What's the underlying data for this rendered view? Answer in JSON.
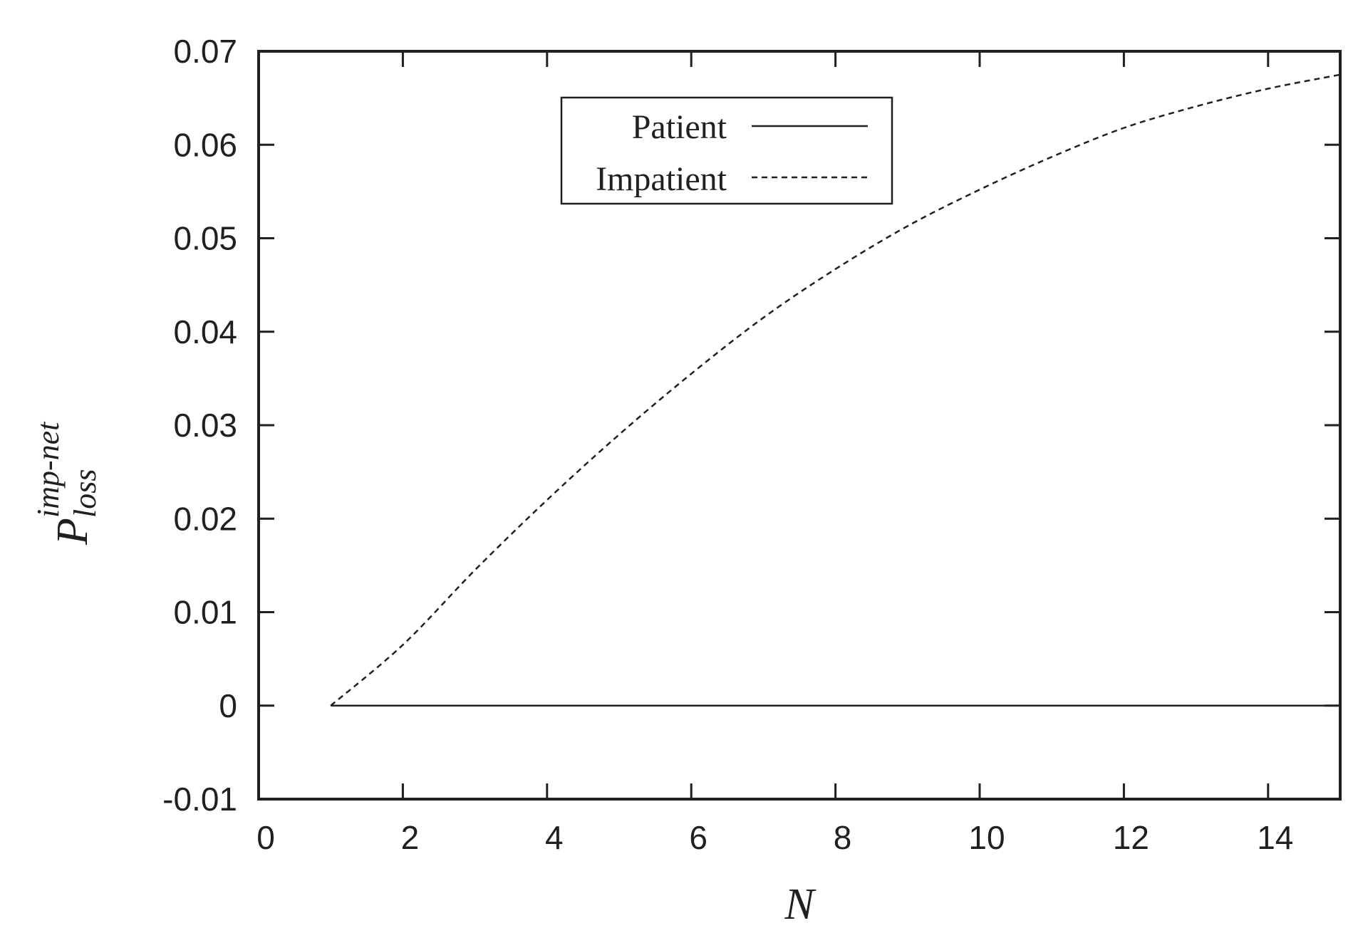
{
  "chart_data": {
    "type": "line",
    "xlabel": "N",
    "ylabel": {
      "main": "P",
      "superscript": "imp-net",
      "subscript": "loss"
    },
    "xlim": [
      0,
      15
    ],
    "ylim": [
      -0.01,
      0.07
    ],
    "x_ticks": [
      "0",
      "2",
      "4",
      "6",
      "8",
      "10",
      "12",
      "14"
    ],
    "x_tick_values": [
      0,
      2,
      4,
      6,
      8,
      10,
      12,
      14
    ],
    "y_ticks": [
      "-0.01",
      "0",
      "0.01",
      "0.02",
      "0.03",
      "0.04",
      "0.05",
      "0.06",
      "0.07"
    ],
    "y_tick_values": [
      -0.01,
      0,
      0.01,
      0.02,
      0.03,
      0.04,
      0.05,
      0.06,
      0.07
    ],
    "grid": false,
    "legend_position": "top-center",
    "series": [
      {
        "name": "Patient",
        "style": "solid",
        "color": "#231f20",
        "x": [
          1,
          2,
          3,
          4,
          5,
          6,
          7,
          8,
          9,
          10,
          11,
          12,
          13,
          14,
          15
        ],
        "y": [
          0,
          0,
          0,
          0,
          0,
          0,
          0,
          0,
          0,
          0,
          0,
          0,
          0,
          0,
          0
        ]
      },
      {
        "name": "Impatient",
        "style": "dashed",
        "color": "#231f20",
        "x": [
          1,
          2,
          3,
          4,
          5,
          6,
          7,
          8,
          9,
          10,
          11,
          12,
          13,
          14,
          15
        ],
        "y": [
          0,
          0.0065,
          0.0145,
          0.022,
          0.029,
          0.0355,
          0.0415,
          0.0467,
          0.0513,
          0.0552,
          0.0587,
          0.0618,
          0.0641,
          0.066,
          0.0675
        ]
      }
    ]
  }
}
